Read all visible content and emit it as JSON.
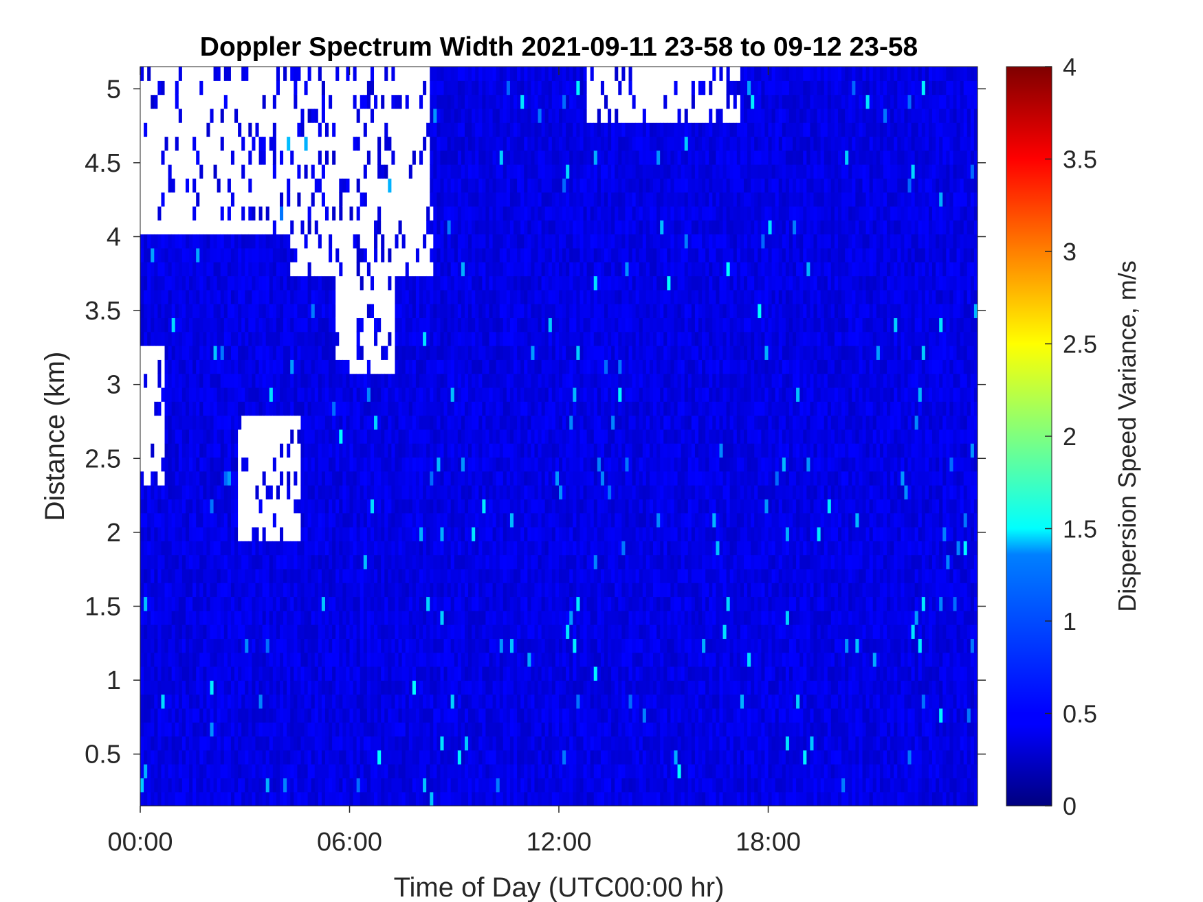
{
  "chart_data": {
    "type": "heatmap",
    "title": "Doppler Spectrum Width 2021-09-11 23-58 to 09-12 23-58",
    "xlabel": "Time of Day (UTC00:00 hr)",
    "ylabel": "Distance (km)",
    "x_range_hours": [
      0,
      24
    ],
    "y_range_km": [
      0.15,
      5.15
    ],
    "x_ticks": [
      {
        "value": 0,
        "label": "00:00"
      },
      {
        "value": 6,
        "label": "06:00"
      },
      {
        "value": 12,
        "label": "12:00"
      },
      {
        "value": 18,
        "label": "18:00"
      }
    ],
    "y_ticks": [
      {
        "value": 0.5,
        "label": "0.5"
      },
      {
        "value": 1,
        "label": "1"
      },
      {
        "value": 1.5,
        "label": "1.5"
      },
      {
        "value": 2,
        "label": "2"
      },
      {
        "value": 2.5,
        "label": "2.5"
      },
      {
        "value": 3,
        "label": "3"
      },
      {
        "value": 3.5,
        "label": "3.5"
      },
      {
        "value": 4,
        "label": "4"
      },
      {
        "value": 4.5,
        "label": "4.5"
      },
      {
        "value": 5,
        "label": "5"
      }
    ],
    "colorbar": {
      "label": "Dispersion Speed Variance, m/s",
      "range": [
        0,
        4
      ],
      "colormap": "jet",
      "ticks": [
        {
          "value": 0,
          "label": "0"
        },
        {
          "value": 0.5,
          "label": "0.5"
        },
        {
          "value": 1,
          "label": "1"
        },
        {
          "value": 1.5,
          "label": "1.5"
        },
        {
          "value": 2,
          "label": "2"
        },
        {
          "value": 2.5,
          "label": "2.5"
        },
        {
          "value": 3,
          "label": "3"
        },
        {
          "value": 3.5,
          "label": "3.5"
        },
        {
          "value": 4,
          "label": "4"
        }
      ]
    },
    "dominant_value_ms": 0.4,
    "no_data_color": "#ffffff",
    "no_data_regions": [
      {
        "time_hours": [
          0,
          4.3
        ],
        "distance_km": [
          4.0,
          5.15
        ]
      },
      {
        "time_hours": [
          0,
          8.3
        ],
        "distance_km": [
          4.2,
          5.15
        ]
      },
      {
        "time_hours": [
          4.3,
          8.4
        ],
        "distance_km": [
          3.7,
          4.2
        ]
      },
      {
        "time_hours": [
          5.6,
          7.3
        ],
        "distance_km": [
          3.1,
          3.8
        ]
      },
      {
        "time_hours": [
          0,
          0.7
        ],
        "distance_km": [
          2.3,
          3.3
        ]
      },
      {
        "time_hours": [
          2.8,
          4.6
        ],
        "distance_km": [
          1.9,
          2.8
        ]
      },
      {
        "time_hours": [
          12.8,
          17.2
        ],
        "distance_km": [
          4.8,
          5.15
        ]
      }
    ],
    "grid": false
  }
}
